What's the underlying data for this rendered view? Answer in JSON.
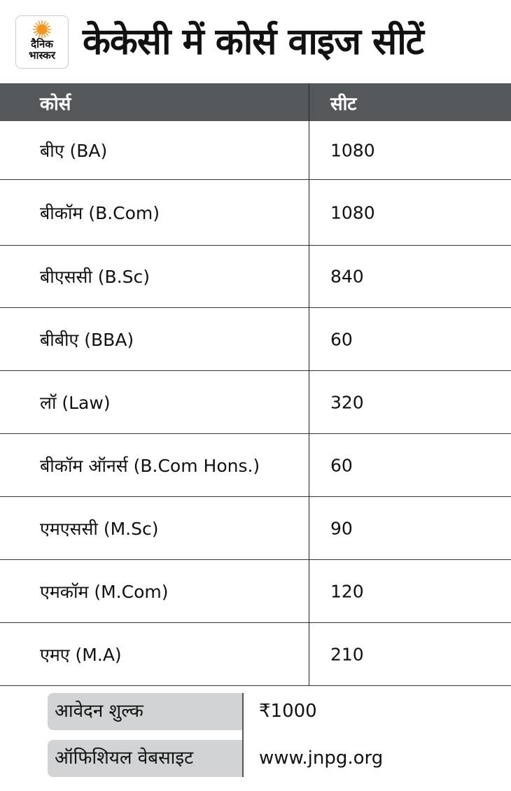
{
  "brand": {
    "logo_text": [
      "दैनिक",
      "भास्कर"
    ],
    "sun_color": "#f7941d"
  },
  "title": "केकेसी में कोर्स वाइज सीटें",
  "table": {
    "headers": [
      "कोर्स",
      "सीट"
    ],
    "header_bg": "#55585b",
    "rows": [
      {
        "course": "बीए (BA)",
        "seats": "1080"
      },
      {
        "course": "बीकॉम (B.Com)",
        "seats": "1080"
      },
      {
        "course": "बीएससी (B.Sc)",
        "seats": "840"
      },
      {
        "course": "बीबीए (BBA)",
        "seats": "60"
      },
      {
        "course": "लॉ (Law)",
        "seats": "320"
      },
      {
        "course": "बीकॉम ऑनर्स (B.Com Hons.)",
        "seats": "60"
      },
      {
        "course": "एमएससी (M.Sc)",
        "seats": "90"
      },
      {
        "course": "एमकॉम (M.Com)",
        "seats": "120"
      },
      {
        "course": "एमए (M.A)",
        "seats": "210"
      }
    ]
  },
  "info": [
    {
      "label": "आवेदन शुल्क",
      "value": "₹1000"
    },
    {
      "label": "ऑफिशियल वेबसाइट",
      "value": "www.jnpg.org"
    }
  ]
}
